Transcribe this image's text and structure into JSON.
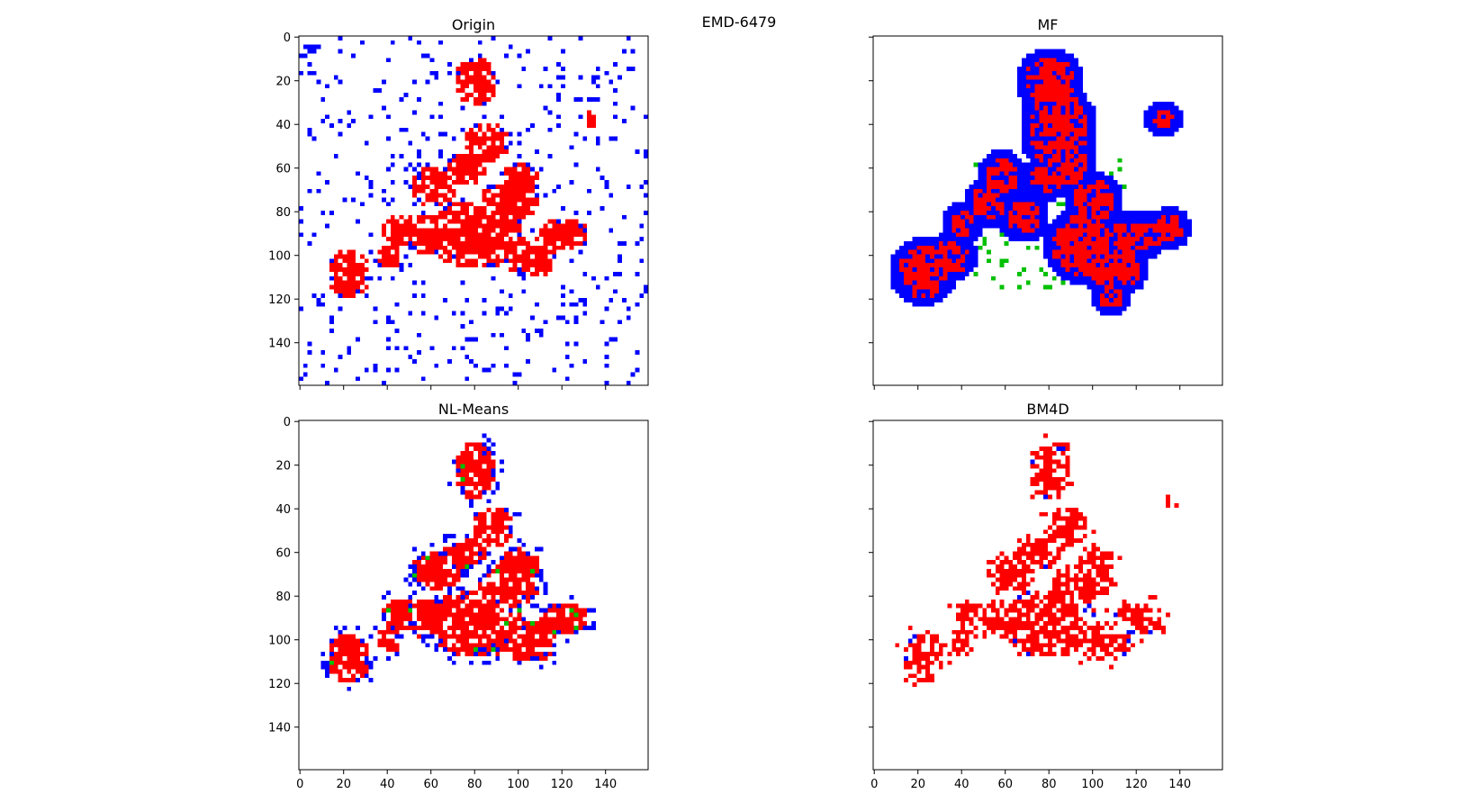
{
  "figure": {
    "suptitle": "EMD-6479"
  },
  "colors": {
    "class_a": "#ff0000",
    "class_b": "#0000ff",
    "class_c": "#00c000",
    "axis": "#000000",
    "background": "#ffffff"
  },
  "chart_data": [
    {
      "type": "heatmap",
      "title": "Origin",
      "xlabel": "",
      "ylabel": "",
      "xlim": [
        0,
        160
      ],
      "ylim": [
        160,
        0
      ],
      "xticks": [
        0,
        20,
        40,
        60,
        80,
        100,
        120,
        140
      ],
      "yticks": [
        0,
        20,
        40,
        60,
        80,
        100,
        120,
        140
      ],
      "show_xticklabels": false,
      "show_yticklabels": true,
      "grid": false,
      "pattern": "noisy",
      "blobs": [
        [
          80,
          20,
          10,
          12
        ],
        [
          85,
          48,
          10,
          10
        ],
        [
          62,
          68,
          12,
          10
        ],
        [
          95,
          75,
          14,
          10
        ],
        [
          80,
          90,
          22,
          16
        ],
        [
          60,
          90,
          12,
          10
        ],
        [
          45,
          88,
          8,
          8
        ],
        [
          40,
          100,
          6,
          6
        ],
        [
          22,
          108,
          10,
          12
        ],
        [
          105,
          100,
          12,
          10
        ],
        [
          120,
          90,
          12,
          8
        ],
        [
          100,
          65,
          10,
          8
        ],
        [
          75,
          60,
          10,
          8
        ],
        [
          133,
          37,
          3,
          4
        ]
      ],
      "series": [
        {
          "name": "",
          "color": "#ff0000"
        },
        {
          "name": "",
          "color": "#0000ff"
        }
      ]
    },
    {
      "type": "heatmap",
      "title": "MF",
      "xlabel": "",
      "ylabel": "",
      "xlim": [
        0,
        160
      ],
      "ylim": [
        160,
        0
      ],
      "xticks": [
        0,
        20,
        40,
        60,
        80,
        100,
        120,
        140
      ],
      "yticks": [
        0,
        20,
        40,
        60,
        80,
        100,
        120,
        140
      ],
      "show_xticklabels": false,
      "show_yticklabels": false,
      "grid": false,
      "pattern": "mf",
      "blobs": [
        [
          80,
          20,
          12,
          12
        ],
        [
          84,
          42,
          14,
          18
        ],
        [
          88,
          58,
          10,
          10
        ],
        [
          58,
          63,
          8,
          8
        ],
        [
          78,
          65,
          8,
          6
        ],
        [
          100,
          75,
          10,
          10
        ],
        [
          52,
          75,
          8,
          8
        ],
        [
          68,
          82,
          8,
          8
        ],
        [
          40,
          85,
          6,
          6
        ],
        [
          95,
          95,
          14,
          14
        ],
        [
          120,
          90,
          12,
          8
        ],
        [
          110,
          105,
          12,
          10
        ],
        [
          22,
          107,
          12,
          12
        ],
        [
          35,
          100,
          8,
          8
        ],
        [
          135,
          87,
          6,
          6
        ],
        [
          108,
          118,
          6,
          6
        ],
        [
          132,
          37,
          6,
          4
        ]
      ],
      "series": [
        {
          "name": "",
          "color": "#ff0000"
        },
        {
          "name": "",
          "color": "#0000ff"
        },
        {
          "name": "",
          "color": "#00c000"
        }
      ]
    },
    {
      "type": "heatmap",
      "title": "NL-Means",
      "xlabel": "",
      "ylabel": "",
      "xlim": [
        0,
        160
      ],
      "ylim": [
        160,
        0
      ],
      "xticks": [
        0,
        20,
        40,
        60,
        80,
        100,
        120,
        140
      ],
      "yticks": [
        0,
        20,
        40,
        60,
        80,
        100,
        120,
        140
      ],
      "show_xticklabels": true,
      "show_yticklabels": true,
      "grid": false,
      "pattern": "clean",
      "blobs": [
        [
          80,
          22,
          9,
          14
        ],
        [
          88,
          48,
          10,
          10
        ],
        [
          62,
          68,
          12,
          10
        ],
        [
          95,
          75,
          14,
          10
        ],
        [
          80,
          92,
          22,
          16
        ],
        [
          60,
          90,
          12,
          10
        ],
        [
          45,
          88,
          8,
          8
        ],
        [
          40,
          100,
          6,
          6
        ],
        [
          22,
          108,
          10,
          12
        ],
        [
          105,
          100,
          12,
          10
        ],
        [
          120,
          90,
          12,
          8
        ],
        [
          100,
          65,
          10,
          8
        ],
        [
          75,
          60,
          10,
          8
        ]
      ],
      "series": [
        {
          "name": "",
          "color": "#ff0000"
        },
        {
          "name": "",
          "color": "#0000ff"
        },
        {
          "name": "",
          "color": "#00c000"
        }
      ]
    },
    {
      "type": "heatmap",
      "title": "BM4D",
      "xlabel": "",
      "ylabel": "",
      "xlim": [
        0,
        160
      ],
      "ylim": [
        160,
        0
      ],
      "xticks": [
        0,
        20,
        40,
        60,
        80,
        100,
        120,
        140
      ],
      "yticks": [
        0,
        20,
        40,
        60,
        80,
        100,
        120,
        140
      ],
      "show_xticklabels": true,
      "show_yticklabels": false,
      "grid": false,
      "pattern": "bm4d",
      "blobs": [
        [
          80,
          22,
          9,
          14
        ],
        [
          88,
          48,
          10,
          10
        ],
        [
          62,
          68,
          12,
          10
        ],
        [
          95,
          75,
          14,
          10
        ],
        [
          80,
          92,
          22,
          16
        ],
        [
          60,
          90,
          12,
          10
        ],
        [
          45,
          88,
          8,
          8
        ],
        [
          40,
          100,
          6,
          6
        ],
        [
          22,
          108,
          10,
          12
        ],
        [
          105,
          100,
          12,
          10
        ],
        [
          120,
          90,
          12,
          8
        ],
        [
          100,
          65,
          10,
          8
        ],
        [
          75,
          60,
          10,
          8
        ],
        [
          133,
          36,
          3,
          3
        ]
      ],
      "series": [
        {
          "name": "",
          "color": "#ff0000"
        },
        {
          "name": "",
          "color": "#0000ff"
        }
      ]
    }
  ]
}
